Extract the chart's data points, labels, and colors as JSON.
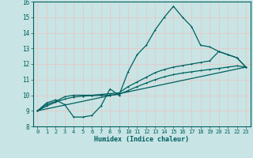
{
  "xlabel": "Humidex (Indice chaleur)",
  "xlim": [
    -0.5,
    23.5
  ],
  "ylim": [
    8,
    16
  ],
  "yticks": [
    8,
    9,
    10,
    11,
    12,
    13,
    14,
    15,
    16
  ],
  "xticks": [
    0,
    1,
    2,
    3,
    4,
    5,
    6,
    7,
    8,
    9,
    10,
    11,
    12,
    13,
    14,
    15,
    16,
    17,
    18,
    19,
    20,
    21,
    22,
    23
  ],
  "bg_color": "#c8e4e4",
  "grid_color": "#e8c8c8",
  "line_color": "#006060",
  "line1_x": [
    0,
    1,
    2,
    3,
    4,
    5,
    6,
    7,
    8,
    9,
    10,
    11,
    12,
    13,
    14,
    15,
    16,
    17,
    18,
    19,
    20,
    21,
    22,
    23
  ],
  "line1_y": [
    9.0,
    9.5,
    9.7,
    9.4,
    8.6,
    8.6,
    8.7,
    9.3,
    10.4,
    10.0,
    11.5,
    12.6,
    13.2,
    14.2,
    15.0,
    15.7,
    15.0,
    14.4,
    13.2,
    13.1,
    12.8,
    12.6,
    12.4,
    11.8
  ],
  "line2_x": [
    0,
    1,
    2,
    3,
    4,
    5,
    6,
    7,
    8,
    9,
    10,
    11,
    12,
    13,
    14,
    15,
    16,
    17,
    18,
    19,
    20,
    21,
    22,
    23
  ],
  "line2_y": [
    9.0,
    9.4,
    9.6,
    9.9,
    10.0,
    10.0,
    10.0,
    10.05,
    10.1,
    10.15,
    10.55,
    10.85,
    11.15,
    11.45,
    11.65,
    11.8,
    11.9,
    12.0,
    12.1,
    12.2,
    12.8,
    12.6,
    12.4,
    11.8
  ],
  "line3_x": [
    0,
    1,
    2,
    3,
    4,
    5,
    6,
    7,
    8,
    9,
    10,
    11,
    12,
    13,
    14,
    15,
    16,
    17,
    18,
    19,
    20,
    21,
    22,
    23
  ],
  "line3_y": [
    9.0,
    9.3,
    9.55,
    9.75,
    9.88,
    9.94,
    9.97,
    9.99,
    10.0,
    10.05,
    10.3,
    10.55,
    10.78,
    11.0,
    11.18,
    11.32,
    11.42,
    11.5,
    11.58,
    11.65,
    11.72,
    11.8,
    11.88,
    11.8
  ],
  "line4_x": [
    0,
    23
  ],
  "line4_y": [
    9.0,
    11.8
  ]
}
